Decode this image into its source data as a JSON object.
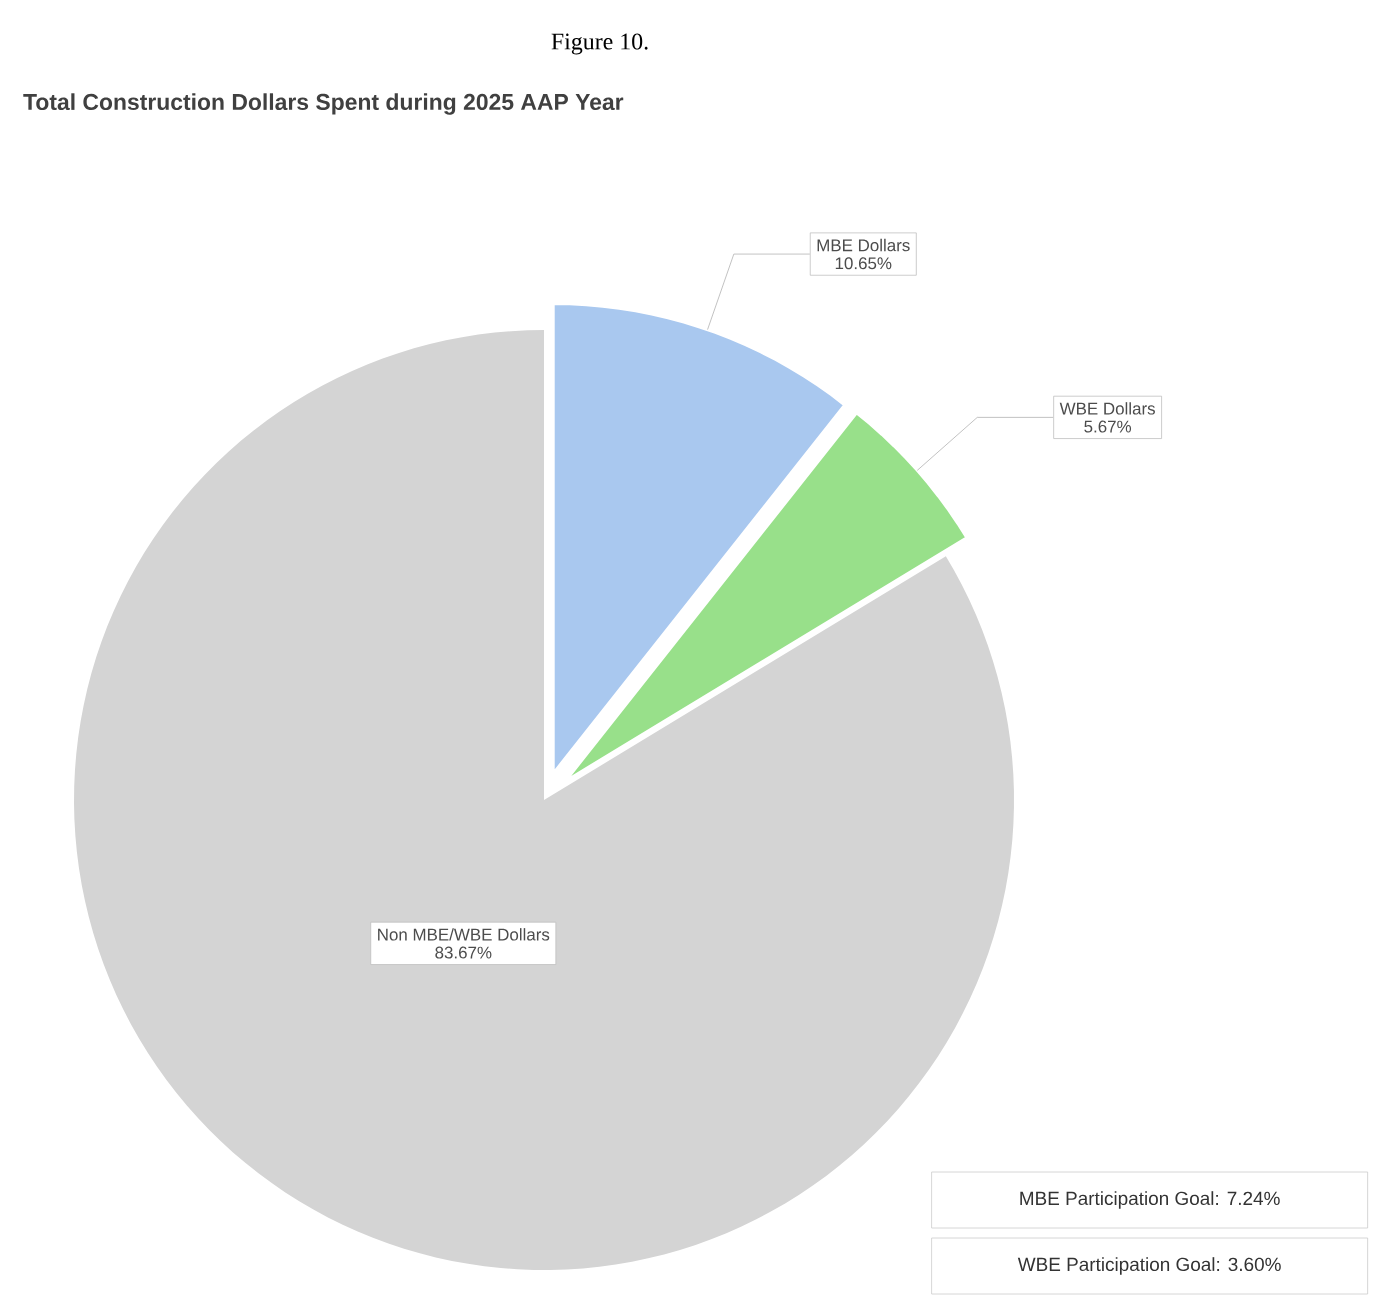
{
  "chart_data": {
    "type": "pie",
    "title": "Total Construction Dollars Spent during 2025 AAP Year",
    "categories": [
      "MBE Dollars",
      "WBE Dollars",
      "Non MBE/WBE Dollars"
    ],
    "values": [
      10.65,
      5.67,
      83.67
    ],
    "value_labels": [
      "10.65%",
      "5.67%",
      "83.67%"
    ],
    "colors": [
      "#a9c8ef",
      "#98e08a",
      "#d4d4d4"
    ],
    "annotations": [
      "Figure 10.",
      "MBE Participation Goal: 7.24%",
      "WBE Participation Goal: 3.60%"
    ]
  }
}
